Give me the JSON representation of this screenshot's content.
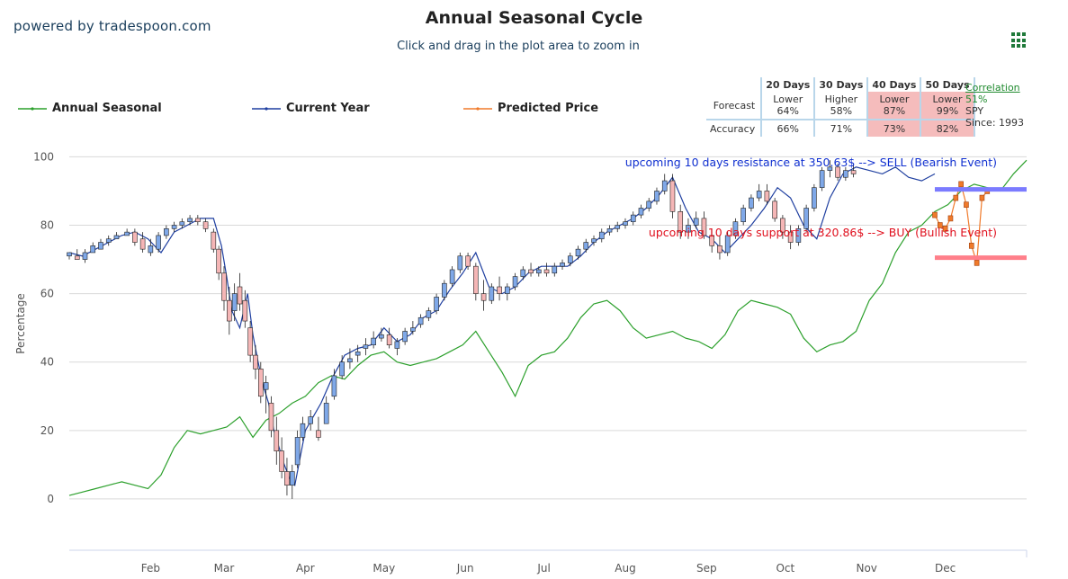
{
  "header": {
    "powered_by": "powered by tradespoon.com",
    "title": "Annual Seasonal Cycle",
    "subtitle": "Click and drag in the plot area to zoom in"
  },
  "legend": [
    {
      "label": "Annual Seasonal",
      "color": "#2ca02c"
    },
    {
      "label": "Current Year",
      "color": "#1f3fa0"
    },
    {
      "label": "Predicted Price",
      "color": "#f07a2a"
    }
  ],
  "stats": {
    "columns": [
      "20 Days",
      "30 Days",
      "40 Days",
      "50 Days"
    ],
    "forecast_label": "Forecast",
    "accuracy_label": "Accuracy",
    "forecast": [
      {
        "dir": "Lower",
        "pct": "64%",
        "highlight": false
      },
      {
        "dir": "Higher",
        "pct": "58%",
        "highlight": false
      },
      {
        "dir": "Lower",
        "pct": "87%",
        "highlight": true
      },
      {
        "dir": "Lower",
        "pct": "99%",
        "highlight": true
      }
    ],
    "accuracy": [
      {
        "pct": "66%",
        "highlight": false
      },
      {
        "pct": "71%",
        "highlight": false
      },
      {
        "pct": "73%",
        "highlight": true
      },
      {
        "pct": "82%",
        "highlight": true
      }
    ],
    "correlation_label": "Correlation",
    "correlation_value": "51%",
    "symbol": "SPY",
    "since": "Since: 1993"
  },
  "chart_data": {
    "type": "line",
    "ylabel": "Percentage",
    "ylim": [
      -15,
      103
    ],
    "yticks": [
      0,
      20,
      40,
      60,
      80,
      100
    ],
    "xlim": [
      0,
      365
    ],
    "xticks": [
      {
        "label": "Feb",
        "day": 31
      },
      {
        "label": "Mar",
        "day": 59
      },
      {
        "label": "Apr",
        "day": 90
      },
      {
        "label": "May",
        "day": 120
      },
      {
        "label": "Jun",
        "day": 151
      },
      {
        "label": "Jul",
        "day": 181
      },
      {
        "label": "Aug",
        "day": 212
      },
      {
        "label": "Sep",
        "day": 243
      },
      {
        "label": "Oct",
        "day": 273
      },
      {
        "label": "Nov",
        "day": 304
      },
      {
        "label": "Dec",
        "day": 334
      }
    ],
    "grid": true,
    "series": [
      {
        "name": "Annual Seasonal",
        "color": "#2ca02c",
        "x": [
          0,
          5,
          10,
          15,
          20,
          25,
          30,
          35,
          40,
          45,
          50,
          55,
          60,
          65,
          70,
          75,
          80,
          85,
          90,
          95,
          100,
          105,
          110,
          115,
          120,
          125,
          130,
          135,
          140,
          145,
          150,
          155,
          160,
          165,
          170,
          175,
          180,
          185,
          190,
          195,
          200,
          205,
          210,
          215,
          220,
          225,
          230,
          235,
          240,
          245,
          250,
          255,
          260,
          265,
          270,
          275,
          280,
          285,
          290,
          295,
          300,
          305,
          310,
          315,
          320,
          325,
          330,
          335,
          340,
          345,
          350,
          355,
          360,
          365
        ],
        "y": [
          1,
          2,
          3,
          4,
          5,
          4,
          3,
          7,
          15,
          20,
          19,
          20,
          21,
          24,
          18,
          23,
          25,
          28,
          30,
          34,
          36,
          35,
          39,
          42,
          43,
          40,
          39,
          40,
          41,
          43,
          45,
          49,
          43,
          37,
          30,
          39,
          42,
          43,
          47,
          53,
          57,
          58,
          55,
          50,
          47,
          48,
          49,
          47,
          46,
          44,
          48,
          55,
          58,
          57,
          56,
          54,
          47,
          43,
          45,
          46,
          49,
          58,
          63,
          72,
          78,
          80,
          84,
          86,
          90,
          92,
          91,
          90,
          95,
          99
        ]
      },
      {
        "name": "Current Year",
        "color": "#1f3fa0",
        "x": [
          0,
          5,
          10,
          15,
          20,
          25,
          30,
          35,
          40,
          45,
          50,
          55,
          58,
          60,
          62,
          65,
          68,
          70,
          72,
          74,
          76,
          78,
          80,
          82,
          84,
          86,
          88,
          90,
          93,
          96,
          100,
          105,
          110,
          115,
          120,
          125,
          130,
          135,
          140,
          145,
          150,
          155,
          160,
          165,
          170,
          175,
          180,
          185,
          190,
          195,
          200,
          205,
          210,
          215,
          220,
          225,
          230,
          235,
          240,
          245,
          250,
          255,
          260,
          265,
          270,
          275,
          280,
          285,
          290,
          295,
          300,
          305,
          310,
          315,
          320,
          325,
          330
        ],
        "y": [
          72,
          71,
          73,
          75,
          77,
          78,
          76,
          72,
          78,
          80,
          82,
          82,
          74,
          65,
          55,
          50,
          60,
          48,
          40,
          33,
          28,
          20,
          15,
          10,
          6,
          4,
          12,
          20,
          24,
          28,
          35,
          42,
          44,
          45,
          50,
          46,
          48,
          53,
          55,
          61,
          66,
          72,
          62,
          60,
          62,
          66,
          68,
          68,
          68,
          71,
          75,
          78,
          80,
          82,
          85,
          89,
          94,
          85,
          78,
          76,
          72,
          76,
          80,
          85,
          91,
          88,
          80,
          76,
          88,
          95,
          97,
          96,
          95,
          97,
          94,
          93,
          95
        ]
      },
      {
        "name": "Predicted Price",
        "color": "#f07a2a",
        "x": [
          330,
          332,
          334,
          336,
          338,
          340,
          342,
          344,
          346,
          348,
          350
        ],
        "y": [
          83,
          80,
          79,
          82,
          88,
          92,
          86,
          74,
          69,
          88,
          90
        ]
      }
    ],
    "candles": [
      {
        "x": 0,
        "o": 71,
        "h": 72,
        "l": 70,
        "c": 72
      },
      {
        "x": 3,
        "o": 71,
        "h": 73,
        "l": 70,
        "c": 70
      },
      {
        "x": 6,
        "o": 70,
        "h": 73,
        "l": 69,
        "c": 72
      },
      {
        "x": 9,
        "o": 72,
        "h": 75,
        "l": 72,
        "c": 74
      },
      {
        "x": 12,
        "o": 73,
        "h": 76,
        "l": 73,
        "c": 75
      },
      {
        "x": 15,
        "o": 75,
        "h": 77,
        "l": 74,
        "c": 76
      },
      {
        "x": 18,
        "o": 76,
        "h": 78,
        "l": 76,
        "c": 77
      },
      {
        "x": 22,
        "o": 77,
        "h": 79,
        "l": 77,
        "c": 78
      },
      {
        "x": 25,
        "o": 78,
        "h": 79,
        "l": 74,
        "c": 75
      },
      {
        "x": 28,
        "o": 76,
        "h": 78,
        "l": 72,
        "c": 73
      },
      {
        "x": 31,
        "o": 72,
        "h": 76,
        "l": 71,
        "c": 74
      },
      {
        "x": 34,
        "o": 73,
        "h": 78,
        "l": 72,
        "c": 77
      },
      {
        "x": 37,
        "o": 77,
        "h": 80,
        "l": 76,
        "c": 79
      },
      {
        "x": 40,
        "o": 79,
        "h": 81,
        "l": 78,
        "c": 80
      },
      {
        "x": 43,
        "o": 80,
        "h": 82,
        "l": 79,
        "c": 81
      },
      {
        "x": 46,
        "o": 81,
        "h": 83,
        "l": 80,
        "c": 82
      },
      {
        "x": 49,
        "o": 82,
        "h": 83,
        "l": 80,
        "c": 81
      },
      {
        "x": 52,
        "o": 81,
        "h": 82,
        "l": 78,
        "c": 79
      },
      {
        "x": 55,
        "o": 78,
        "h": 79,
        "l": 72,
        "c": 73
      },
      {
        "x": 57,
        "o": 73,
        "h": 74,
        "l": 64,
        "c": 66
      },
      {
        "x": 59,
        "o": 66,
        "h": 68,
        "l": 55,
        "c": 58
      },
      {
        "x": 61,
        "o": 58,
        "h": 62,
        "l": 48,
        "c": 52
      },
      {
        "x": 63,
        "o": 55,
        "h": 63,
        "l": 52,
        "c": 60
      },
      {
        "x": 65,
        "o": 62,
        "h": 66,
        "l": 55,
        "c": 57
      },
      {
        "x": 67,
        "o": 58,
        "h": 61,
        "l": 50,
        "c": 52
      },
      {
        "x": 69,
        "o": 50,
        "h": 52,
        "l": 40,
        "c": 42
      },
      {
        "x": 71,
        "o": 42,
        "h": 45,
        "l": 35,
        "c": 38
      },
      {
        "x": 73,
        "o": 38,
        "h": 40,
        "l": 28,
        "c": 30
      },
      {
        "x": 75,
        "o": 32,
        "h": 36,
        "l": 25,
        "c": 34
      },
      {
        "x": 77,
        "o": 28,
        "h": 30,
        "l": 18,
        "c": 20
      },
      {
        "x": 79,
        "o": 20,
        "h": 24,
        "l": 10,
        "c": 14
      },
      {
        "x": 81,
        "o": 14,
        "h": 18,
        "l": 6,
        "c": 8
      },
      {
        "x": 83,
        "o": 8,
        "h": 12,
        "l": 1,
        "c": 4
      },
      {
        "x": 85,
        "o": 4,
        "h": 10,
        "l": 0,
        "c": 8
      },
      {
        "x": 87,
        "o": 10,
        "h": 20,
        "l": 9,
        "c": 18
      },
      {
        "x": 89,
        "o": 18,
        "h": 24,
        "l": 17,
        "c": 22
      },
      {
        "x": 92,
        "o": 22,
        "h": 26,
        "l": 20,
        "c": 24
      },
      {
        "x": 95,
        "o": 20,
        "h": 24,
        "l": 17,
        "c": 18
      },
      {
        "x": 98,
        "o": 22,
        "h": 30,
        "l": 22,
        "c": 28
      },
      {
        "x": 101,
        "o": 30,
        "h": 38,
        "l": 29,
        "c": 36
      },
      {
        "x": 104,
        "o": 36,
        "h": 42,
        "l": 35,
        "c": 40
      },
      {
        "x": 107,
        "o": 40,
        "h": 44,
        "l": 38,
        "c": 41
      },
      {
        "x": 110,
        "o": 42,
        "h": 45,
        "l": 40,
        "c": 43
      },
      {
        "x": 113,
        "o": 44,
        "h": 47,
        "l": 42,
        "c": 45
      },
      {
        "x": 116,
        "o": 45,
        "h": 49,
        "l": 44,
        "c": 47
      },
      {
        "x": 119,
        "o": 47,
        "h": 50,
        "l": 46,
        "c": 48
      },
      {
        "x": 122,
        "o": 48,
        "h": 50,
        "l": 44,
        "c": 45
      },
      {
        "x": 125,
        "o": 44,
        "h": 47,
        "l": 42,
        "c": 46
      },
      {
        "x": 128,
        "o": 46,
        "h": 50,
        "l": 45,
        "c": 49
      },
      {
        "x": 131,
        "o": 49,
        "h": 52,
        "l": 48,
        "c": 50
      },
      {
        "x": 134,
        "o": 51,
        "h": 54,
        "l": 50,
        "c": 53
      },
      {
        "x": 137,
        "o": 53,
        "h": 56,
        "l": 52,
        "c": 55
      },
      {
        "x": 140,
        "o": 55,
        "h": 60,
        "l": 54,
        "c": 59
      },
      {
        "x": 143,
        "o": 59,
        "h": 64,
        "l": 58,
        "c": 63
      },
      {
        "x": 146,
        "o": 63,
        "h": 68,
        "l": 62,
        "c": 67
      },
      {
        "x": 149,
        "o": 67,
        "h": 72,
        "l": 66,
        "c": 71
      },
      {
        "x": 152,
        "o": 71,
        "h": 72,
        "l": 67,
        "c": 68
      },
      {
        "x": 155,
        "o": 68,
        "h": 69,
        "l": 58,
        "c": 60
      },
      {
        "x": 158,
        "o": 60,
        "h": 64,
        "l": 55,
        "c": 58
      },
      {
        "x": 161,
        "o": 58,
        "h": 63,
        "l": 57,
        "c": 62
      },
      {
        "x": 164,
        "o": 62,
        "h": 65,
        "l": 58,
        "c": 60
      },
      {
        "x": 167,
        "o": 60,
        "h": 63,
        "l": 58,
        "c": 62
      },
      {
        "x": 170,
        "o": 62,
        "h": 66,
        "l": 61,
        "c": 65
      },
      {
        "x": 173,
        "o": 65,
        "h": 68,
        "l": 64,
        "c": 67
      },
      {
        "x": 176,
        "o": 67,
        "h": 69,
        "l": 65,
        "c": 66
      },
      {
        "x": 179,
        "o": 66,
        "h": 68,
        "l": 65,
        "c": 67
      },
      {
        "x": 182,
        "o": 67,
        "h": 69,
        "l": 65,
        "c": 66
      },
      {
        "x": 185,
        "o": 66,
        "h": 69,
        "l": 65,
        "c": 68
      },
      {
        "x": 188,
        "o": 68,
        "h": 70,
        "l": 67,
        "c": 69
      },
      {
        "x": 191,
        "o": 69,
        "h": 72,
        "l": 68,
        "c": 71
      },
      {
        "x": 194,
        "o": 71,
        "h": 74,
        "l": 70,
        "c": 73
      },
      {
        "x": 197,
        "o": 73,
        "h": 76,
        "l": 72,
        "c": 75
      },
      {
        "x": 200,
        "o": 75,
        "h": 77,
        "l": 74,
        "c": 76
      },
      {
        "x": 203,
        "o": 76,
        "h": 79,
        "l": 75,
        "c": 78
      },
      {
        "x": 206,
        "o": 78,
        "h": 80,
        "l": 77,
        "c": 79
      },
      {
        "x": 209,
        "o": 79,
        "h": 81,
        "l": 78,
        "c": 80
      },
      {
        "x": 212,
        "o": 80,
        "h": 82,
        "l": 79,
        "c": 81
      },
      {
        "x": 215,
        "o": 81,
        "h": 84,
        "l": 80,
        "c": 83
      },
      {
        "x": 218,
        "o": 83,
        "h": 86,
        "l": 82,
        "c": 85
      },
      {
        "x": 221,
        "o": 85,
        "h": 88,
        "l": 84,
        "c": 87
      },
      {
        "x": 224,
        "o": 87,
        "h": 91,
        "l": 86,
        "c": 90
      },
      {
        "x": 227,
        "o": 90,
        "h": 95,
        "l": 89,
        "c": 93
      },
      {
        "x": 230,
        "o": 93,
        "h": 95,
        "l": 82,
        "c": 84
      },
      {
        "x": 233,
        "o": 84,
        "h": 86,
        "l": 76,
        "c": 78
      },
      {
        "x": 236,
        "o": 78,
        "h": 82,
        "l": 76,
        "c": 80
      },
      {
        "x": 239,
        "o": 80,
        "h": 84,
        "l": 79,
        "c": 82
      },
      {
        "x": 242,
        "o": 82,
        "h": 84,
        "l": 76,
        "c": 77
      },
      {
        "x": 245,
        "o": 77,
        "h": 79,
        "l": 72,
        "c": 74
      },
      {
        "x": 248,
        "o": 74,
        "h": 77,
        "l": 70,
        "c": 72
      },
      {
        "x": 251,
        "o": 72,
        "h": 78,
        "l": 71,
        "c": 77
      },
      {
        "x": 254,
        "o": 77,
        "h": 82,
        "l": 76,
        "c": 81
      },
      {
        "x": 257,
        "o": 81,
        "h": 86,
        "l": 80,
        "c": 85
      },
      {
        "x": 260,
        "o": 85,
        "h": 89,
        "l": 84,
        "c": 88
      },
      {
        "x": 263,
        "o": 88,
        "h": 92,
        "l": 87,
        "c": 90
      },
      {
        "x": 266,
        "o": 90,
        "h": 92,
        "l": 86,
        "c": 87
      },
      {
        "x": 269,
        "o": 87,
        "h": 88,
        "l": 81,
        "c": 82
      },
      {
        "x": 272,
        "o": 82,
        "h": 83,
        "l": 76,
        "c": 78
      },
      {
        "x": 275,
        "o": 78,
        "h": 80,
        "l": 73,
        "c": 75
      },
      {
        "x": 278,
        "o": 75,
        "h": 80,
        "l": 74,
        "c": 79
      },
      {
        "x": 281,
        "o": 79,
        "h": 86,
        "l": 78,
        "c": 85
      },
      {
        "x": 284,
        "o": 85,
        "h": 92,
        "l": 84,
        "c": 91
      },
      {
        "x": 287,
        "o": 91,
        "h": 97,
        "l": 90,
        "c": 96
      },
      {
        "x": 290,
        "o": 96,
        "h": 99,
        "l": 94,
        "c": 97
      },
      {
        "x": 293,
        "o": 97,
        "h": 98,
        "l": 93,
        "c": 94
      },
      {
        "x": 296,
        "o": 94,
        "h": 97,
        "l": 93,
        "c": 96
      },
      {
        "x": 299,
        "o": 96,
        "h": 98,
        "l": 94,
        "c": 95
      }
    ],
    "lines": [
      {
        "label": "upcoming 10 days resistance at 350.63$ --> SELL (Bearish Event)",
        "y": 90.5,
        "x_from": 330,
        "x_to": 365,
        "color": "#7b7bff",
        "text_color": "#1030d0"
      },
      {
        "label": "upcoming 10 days support at 320.86$ --> BUY (Bullish Event)",
        "y": 70.5,
        "x_from": 330,
        "x_to": 365,
        "color": "#ff7f8a",
        "text_color": "#e0101e"
      }
    ]
  }
}
